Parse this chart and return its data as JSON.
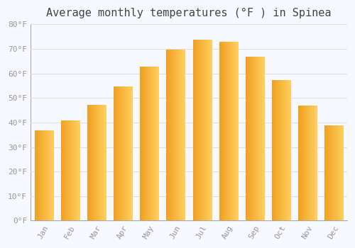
{
  "title": "Average monthly temperatures (°F ) in Spinea",
  "months": [
    "Jan",
    "Feb",
    "Mar",
    "Apr",
    "May",
    "Jun",
    "Jul",
    "Aug",
    "Sep",
    "Oct",
    "Nov",
    "Dec"
  ],
  "values": [
    36.5,
    40.5,
    47.0,
    54.5,
    62.5,
    69.5,
    73.5,
    72.5,
    66.5,
    57.0,
    46.5,
    38.5
  ],
  "bar_color_left": "#F0A020",
  "bar_color_right": "#FFD060",
  "background_color": "#F8F8FF",
  "grid_color": "#DDDDEE",
  "ylim": [
    0,
    80
  ],
  "ytick_step": 10,
  "title_fontsize": 11,
  "tick_fontsize": 8,
  "font_family": "monospace",
  "bar_width": 0.7
}
